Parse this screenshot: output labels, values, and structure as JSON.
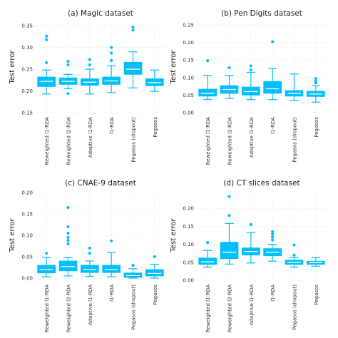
{
  "chart_data": [
    {
      "type": "boxplot",
      "title": "(a) Magic dataset",
      "ylabel": "Test error",
      "ylim": [
        0.15,
        0.36
      ],
      "yticks": [
        0.15,
        0.2,
        0.25,
        0.3,
        0.35
      ],
      "ytick_labels": [
        "0.15",
        "0.20",
        "0.25",
        "0.30",
        "0.35"
      ],
      "categories": [
        "Reweighted l1-RDA",
        "Reweighted l2-RDA",
        "Adaptive l1-RDA",
        "l1-RDA",
        "Pegasos (dropout)",
        "Pegasos"
      ],
      "boxes": [
        {
          "whislo": 0.193,
          "q1": 0.21,
          "med": 0.222,
          "q3": 0.232,
          "whishi": 0.248,
          "fliers": [
            0.265,
            0.318,
            0.326
          ]
        },
        {
          "whislo": 0.205,
          "q1": 0.215,
          "med": 0.222,
          "q3": 0.23,
          "whishi": 0.238,
          "fliers": [
            0.194,
            0.26,
            0.268
          ]
        },
        {
          "whislo": 0.193,
          "q1": 0.213,
          "med": 0.22,
          "q3": 0.228,
          "whishi": 0.25,
          "fliers": [
            0.26,
            0.272
          ]
        },
        {
          "whislo": 0.196,
          "q1": 0.215,
          "med": 0.223,
          "q3": 0.232,
          "whishi": 0.258,
          "fliers": [
            0.27,
            0.287,
            0.3
          ]
        },
        {
          "whislo": 0.207,
          "q1": 0.238,
          "med": 0.25,
          "q3": 0.266,
          "whishi": 0.29,
          "fliers": [
            0.34,
            0.347
          ]
        },
        {
          "whislo": 0.199,
          "q1": 0.212,
          "med": 0.219,
          "q3": 0.228,
          "whishi": 0.248,
          "fliers": []
        }
      ]
    },
    {
      "type": "boxplot",
      "title": "(b) Pen Digits dataset",
      "ylabel": "Test error",
      "ylim": [
        0.0,
        0.26
      ],
      "yticks": [
        0.0,
        0.05,
        0.1,
        0.15,
        0.2,
        0.25
      ],
      "ytick_labels": [
        "0.00",
        "0.05",
        "0.10",
        "0.15",
        "0.20",
        "0.25"
      ],
      "categories": [
        "Reweighted l1-RDA",
        "Reweighted l2-RDA",
        "Adaptive l1-RDA",
        "l1-RDA",
        "Pegasos (dropout)",
        "Pegasos"
      ],
      "boxes": [
        {
          "whislo": 0.038,
          "q1": 0.047,
          "med": 0.055,
          "q3": 0.067,
          "whishi": 0.106,
          "fliers": [
            0.148
          ]
        },
        {
          "whislo": 0.04,
          "q1": 0.055,
          "med": 0.066,
          "q3": 0.077,
          "whishi": 0.106,
          "fliers": [
            0.128
          ]
        },
        {
          "whislo": 0.037,
          "q1": 0.05,
          "med": 0.06,
          "q3": 0.073,
          "whishi": 0.115,
          "fliers": [
            0.122,
            0.133
          ]
        },
        {
          "whislo": 0.037,
          "q1": 0.055,
          "med": 0.068,
          "q3": 0.089,
          "whishi": 0.126,
          "fliers": [
            0.202
          ]
        },
        {
          "whislo": 0.035,
          "q1": 0.047,
          "med": 0.055,
          "q3": 0.063,
          "whishi": 0.11,
          "fliers": []
        },
        {
          "whislo": 0.03,
          "q1": 0.046,
          "med": 0.053,
          "q3": 0.061,
          "whishi": 0.077,
          "fliers": [
            0.085,
            0.09,
            0.097
          ]
        }
      ]
    },
    {
      "type": "boxplot",
      "title": "(c) CNAE-9 dataset",
      "ylabel": "Test error",
      "ylim": [
        -0.005,
        0.205
      ],
      "yticks": [
        0.0,
        0.05,
        0.1,
        0.15,
        0.2
      ],
      "ytick_labels": [
        "0.00",
        "0.05",
        "0.10",
        "0.15",
        "0.20"
      ],
      "categories": [
        "Reweighted l1-RDA",
        "Reweighted l2-RDA",
        "Adaptive l1-RDA",
        "l1-RDA",
        "Pegasos (dropout)",
        "Pegasos"
      ],
      "boxes": [
        {
          "whislo": 0.003,
          "q1": 0.012,
          "med": 0.02,
          "q3": 0.03,
          "whishi": 0.048,
          "fliers": [
            0.058
          ]
        },
        {
          "whislo": 0.005,
          "q1": 0.017,
          "med": 0.027,
          "q3": 0.04,
          "whishi": 0.048,
          "fliers": [
            0.08,
            0.088,
            0.095,
            0.105,
            0.12,
            0.165
          ]
        },
        {
          "whislo": 0.004,
          "q1": 0.013,
          "med": 0.02,
          "q3": 0.03,
          "whishi": 0.04,
          "fliers": [
            0.058,
            0.07
          ]
        },
        {
          "whislo": 0.003,
          "q1": 0.013,
          "med": 0.02,
          "q3": 0.03,
          "whishi": 0.06,
          "fliers": [
            0.087
          ]
        },
        {
          "whislo": 0.0,
          "q1": 0.002,
          "med": 0.006,
          "q3": 0.012,
          "whishi": 0.022,
          "fliers": [
            0.03
          ]
        },
        {
          "whislo": 0.0,
          "q1": 0.005,
          "med": 0.011,
          "q3": 0.02,
          "whishi": 0.032,
          "fliers": [
            0.05
          ]
        }
      ]
    },
    {
      "type": "boxplot",
      "title": "(d) CT slices dataset",
      "ylabel": "Test error",
      "ylim": [
        0.0,
        0.25
      ],
      "yticks": [
        0.0,
        0.05,
        0.1,
        0.15,
        0.2
      ],
      "ytick_labels": [
        "0.00",
        "0.05",
        "0.10",
        "0.15",
        "0.20"
      ],
      "categories": [
        "Reweighted l1-RDA",
        "Reweighted l2-RDA",
        "Adaptive l1-RDA",
        "l1-RDA",
        "Pegasos (dropout)",
        "Pegasos"
      ],
      "boxes": [
        {
          "whislo": 0.036,
          "q1": 0.044,
          "med": 0.051,
          "q3": 0.062,
          "whishi": 0.083,
          "fliers": [
            0.105
          ]
        },
        {
          "whislo": 0.045,
          "q1": 0.06,
          "med": 0.078,
          "q3": 0.106,
          "whishi": 0.158,
          "fliers": [
            0.18,
            0.233
          ]
        },
        {
          "whislo": 0.048,
          "q1": 0.07,
          "med": 0.08,
          "q3": 0.09,
          "whishi": 0.133,
          "fliers": [
            0.155
          ]
        },
        {
          "whislo": 0.053,
          "q1": 0.068,
          "med": 0.078,
          "q3": 0.088,
          "whishi": 0.1,
          "fliers": [
            0.112,
            0.12,
            0.128,
            0.135
          ]
        },
        {
          "whislo": 0.036,
          "q1": 0.044,
          "med": 0.05,
          "q3": 0.056,
          "whishi": 0.063,
          "fliers": [
            0.07,
            0.098
          ]
        },
        {
          "whislo": 0.039,
          "q1": 0.044,
          "med": 0.049,
          "q3": 0.053,
          "whishi": 0.063,
          "fliers": []
        }
      ]
    }
  ],
  "colors": {
    "box_fill": "#00bfff",
    "median": "#ffffff",
    "grid": "#e6e6e6"
  }
}
